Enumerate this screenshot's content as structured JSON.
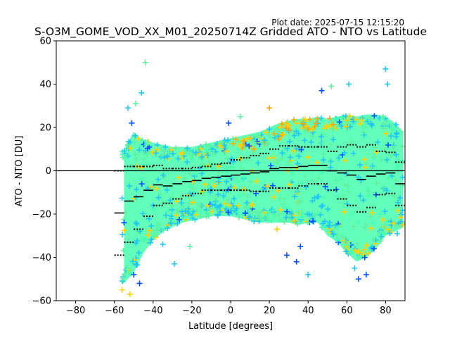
{
  "plot_date": "Plot date: 2025-07-15 12:15:20",
  "chart_data": {
    "type": "scatter",
    "title": "S-O3M_GOME_VOD_XX_M01_20250714Z Gridded ATO - NTO vs Latitude",
    "xlabel": "Latitude [degrees]",
    "ylabel": "ATO - NTO [DU]",
    "xlim": [
      -90,
      90
    ],
    "ylim": [
      -60,
      60
    ],
    "xticks": [
      -80,
      -60,
      -40,
      -20,
      0,
      20,
      40,
      60,
      80
    ],
    "yticks": [
      -60,
      -40,
      -20,
      0,
      20,
      40,
      60
    ],
    "zero_line": 0,
    "grid": false,
    "marker": "plus",
    "colors": {
      "scatter_dense": "#46ffaf",
      "scatter_light": "#5ff0a0",
      "scatter_cyan": "#1ec8f0",
      "scatter_blue": "#0050ff",
      "scatter_yellow": "#ffd000",
      "scatter_orange": "#ffa500",
      "mean_line": "#000000",
      "std_dots": "#000000"
    },
    "bin_means": [
      {
        "x": -57.5,
        "y": -19.5
      },
      {
        "x": -52.5,
        "y": -14
      },
      {
        "x": -47.5,
        "y": -12
      },
      {
        "x": -42.5,
        "y": -9
      },
      {
        "x": -37.5,
        "y": -6.5
      },
      {
        "x": -32.5,
        "y": -7
      },
      {
        "x": -27.5,
        "y": -6
      },
      {
        "x": -22.5,
        "y": -5
      },
      {
        "x": -17.5,
        "y": -4.5
      },
      {
        "x": -12.5,
        "y": -3.5
      },
      {
        "x": -7.5,
        "y": -3
      },
      {
        "x": -2.5,
        "y": -2.5
      },
      {
        "x": 2.5,
        "y": -2
      },
      {
        "x": 7.5,
        "y": -1.5
      },
      {
        "x": 12.5,
        "y": -1
      },
      {
        "x": 17.5,
        "y": -0.5
      },
      {
        "x": 22.5,
        "y": 1
      },
      {
        "x": 27.5,
        "y": 1.5
      },
      {
        "x": 32.5,
        "y": 1.5
      },
      {
        "x": 37.5,
        "y": 2
      },
      {
        "x": 42.5,
        "y": 2.5
      },
      {
        "x": 47.5,
        "y": 2.5
      },
      {
        "x": 52.5,
        "y": 0
      },
      {
        "x": 57.5,
        "y": -1
      },
      {
        "x": 62.5,
        "y": -2
      },
      {
        "x": 67.5,
        "y": -4
      },
      {
        "x": 72.5,
        "y": -2.5
      },
      {
        "x": 77.5,
        "y": -1.5
      },
      {
        "x": 82.5,
        "y": -1
      },
      {
        "x": 87.5,
        "y": -6
      }
    ],
    "bin_std_upper": [
      {
        "x": -57.5,
        "y": 0
      },
      {
        "x": -52.5,
        "y": 2
      },
      {
        "x": -47.5,
        "y": 2
      },
      {
        "x": -42.5,
        "y": 2
      },
      {
        "x": -37.5,
        "y": 2.5
      },
      {
        "x": -32.5,
        "y": 1
      },
      {
        "x": -27.5,
        "y": 1
      },
      {
        "x": -22.5,
        "y": 1
      },
      {
        "x": -17.5,
        "y": 1.5
      },
      {
        "x": -12.5,
        "y": 2
      },
      {
        "x": -7.5,
        "y": 3
      },
      {
        "x": -2.5,
        "y": 3.5
      },
      {
        "x": 2.5,
        "y": 5
      },
      {
        "x": 7.5,
        "y": 6
      },
      {
        "x": 12.5,
        "y": 7
      },
      {
        "x": 17.5,
        "y": 8
      },
      {
        "x": 22.5,
        "y": 10
      },
      {
        "x": 27.5,
        "y": 11.5
      },
      {
        "x": 32.5,
        "y": 11.5
      },
      {
        "x": 37.5,
        "y": 11
      },
      {
        "x": 42.5,
        "y": 11
      },
      {
        "x": 47.5,
        "y": 11
      },
      {
        "x": 52.5,
        "y": 9
      },
      {
        "x": 57.5,
        "y": 11
      },
      {
        "x": 62.5,
        "y": 12
      },
      {
        "x": 67.5,
        "y": 11
      },
      {
        "x": 72.5,
        "y": 12
      },
      {
        "x": 77.5,
        "y": 9
      },
      {
        "x": 82.5,
        "y": 8.5
      },
      {
        "x": 87.5,
        "y": 4
      }
    ],
    "bin_std_lower": [
      {
        "x": -57.5,
        "y": -39
      },
      {
        "x": -52.5,
        "y": -33
      },
      {
        "x": -47.5,
        "y": -27
      },
      {
        "x": -42.5,
        "y": -21
      },
      {
        "x": -37.5,
        "y": -16
      },
      {
        "x": -32.5,
        "y": -15
      },
      {
        "x": -27.5,
        "y": -13
      },
      {
        "x": -22.5,
        "y": -11.5
      },
      {
        "x": -17.5,
        "y": -10.5
      },
      {
        "x": -12.5,
        "y": -9
      },
      {
        "x": -7.5,
        "y": -9
      },
      {
        "x": -2.5,
        "y": -9
      },
      {
        "x": 2.5,
        "y": -9
      },
      {
        "x": 7.5,
        "y": -9
      },
      {
        "x": 12.5,
        "y": -9.5
      },
      {
        "x": 17.5,
        "y": -9.5
      },
      {
        "x": 22.5,
        "y": -8
      },
      {
        "x": 27.5,
        "y": -8
      },
      {
        "x": 32.5,
        "y": -8
      },
      {
        "x": 37.5,
        "y": -7
      },
      {
        "x": 42.5,
        "y": -6
      },
      {
        "x": 47.5,
        "y": -6
      },
      {
        "x": 52.5,
        "y": -9
      },
      {
        "x": 57.5,
        "y": -13
      },
      {
        "x": 62.5,
        "y": -16
      },
      {
        "x": 67.5,
        "y": -19
      },
      {
        "x": 72.5,
        "y": -17
      },
      {
        "x": 77.5,
        "y": -11
      },
      {
        "x": 82.5,
        "y": -10.5
      },
      {
        "x": 87.5,
        "y": -16
      }
    ],
    "envelope_upper": [
      {
        "x": -55,
        "y": 10
      },
      {
        "x": -50,
        "y": 18
      },
      {
        "x": -45,
        "y": 14
      },
      {
        "x": -40,
        "y": 13
      },
      {
        "x": -35,
        "y": 12
      },
      {
        "x": -30,
        "y": 11
      },
      {
        "x": -25,
        "y": 11
      },
      {
        "x": -20,
        "y": 11
      },
      {
        "x": -15,
        "y": 12
      },
      {
        "x": -10,
        "y": 13
      },
      {
        "x": -5,
        "y": 14
      },
      {
        "x": 0,
        "y": 15
      },
      {
        "x": 5,
        "y": 16
      },
      {
        "x": 10,
        "y": 17
      },
      {
        "x": 15,
        "y": 18
      },
      {
        "x": 20,
        "y": 20
      },
      {
        "x": 25,
        "y": 22
      },
      {
        "x": 30,
        "y": 23
      },
      {
        "x": 35,
        "y": 24
      },
      {
        "x": 40,
        "y": 24
      },
      {
        "x": 45,
        "y": 25
      },
      {
        "x": 50,
        "y": 24
      },
      {
        "x": 55,
        "y": 25
      },
      {
        "x": 60,
        "y": 26
      },
      {
        "x": 65,
        "y": 25
      },
      {
        "x": 70,
        "y": 26
      },
      {
        "x": 75,
        "y": 26
      },
      {
        "x": 80,
        "y": 25
      },
      {
        "x": 85,
        "y": 22
      },
      {
        "x": 89,
        "y": 18
      }
    ],
    "envelope_lower": [
      {
        "x": -55,
        "y": -52
      },
      {
        "x": -50,
        "y": -47
      },
      {
        "x": -45,
        "y": -38
      },
      {
        "x": -40,
        "y": -32
      },
      {
        "x": -35,
        "y": -28
      },
      {
        "x": -30,
        "y": -26
      },
      {
        "x": -25,
        "y": -24
      },
      {
        "x": -20,
        "y": -23
      },
      {
        "x": -15,
        "y": -22
      },
      {
        "x": -10,
        "y": -21
      },
      {
        "x": -5,
        "y": -21
      },
      {
        "x": 0,
        "y": -21
      },
      {
        "x": 5,
        "y": -22
      },
      {
        "x": 10,
        "y": -23
      },
      {
        "x": 15,
        "y": -24
      },
      {
        "x": 20,
        "y": -24
      },
      {
        "x": 25,
        "y": -24
      },
      {
        "x": 30,
        "y": -24
      },
      {
        "x": 35,
        "y": -25
      },
      {
        "x": 40,
        "y": -24
      },
      {
        "x": 45,
        "y": -24
      },
      {
        "x": 50,
        "y": -30
      },
      {
        "x": 55,
        "y": -33
      },
      {
        "x": 60,
        "y": -38
      },
      {
        "x": 65,
        "y": -42
      },
      {
        "x": 70,
        "y": -40
      },
      {
        "x": 75,
        "y": -36
      },
      {
        "x": 80,
        "y": -30
      },
      {
        "x": 85,
        "y": -28
      },
      {
        "x": 89,
        "y": -26
      }
    ],
    "outliers": [
      {
        "x": -44,
        "y": 50,
        "c": "scatter_light"
      },
      {
        "x": -46,
        "y": 36,
        "c": "scatter_cyan"
      },
      {
        "x": -49,
        "y": 31,
        "c": "scatter_light"
      },
      {
        "x": -53,
        "y": 29,
        "c": "scatter_cyan"
      },
      {
        "x": -51,
        "y": 22,
        "c": "scatter_blue"
      },
      {
        "x": -55,
        "y": -24,
        "c": "scatter_blue"
      },
      {
        "x": -50,
        "y": -48,
        "c": "scatter_blue"
      },
      {
        "x": -47,
        "y": -52,
        "c": "scatter_blue"
      },
      {
        "x": -52,
        "y": -57,
        "c": "scatter_yellow"
      },
      {
        "x": -56,
        "y": -55,
        "c": "scatter_yellow"
      },
      {
        "x": -35,
        "y": -34,
        "c": "scatter_cyan"
      },
      {
        "x": -29,
        "y": -43,
        "c": "scatter_cyan"
      },
      {
        "x": -21,
        "y": -35,
        "c": "scatter_light"
      },
      {
        "x": -1,
        "y": 22,
        "c": "scatter_blue"
      },
      {
        "x": 5,
        "y": 25,
        "c": "scatter_light"
      },
      {
        "x": 20,
        "y": 29,
        "c": "scatter_orange"
      },
      {
        "x": 24,
        "y": -27,
        "c": "scatter_yellow"
      },
      {
        "x": 29,
        "y": -39,
        "c": "scatter_blue"
      },
      {
        "x": 34,
        "y": -42,
        "c": "scatter_blue"
      },
      {
        "x": 36,
        "y": -35,
        "c": "scatter_blue"
      },
      {
        "x": 40,
        "y": -48,
        "c": "scatter_cyan"
      },
      {
        "x": 47,
        "y": 37,
        "c": "scatter_blue"
      },
      {
        "x": 52,
        "y": 39,
        "c": "scatter_light"
      },
      {
        "x": 61,
        "y": 40,
        "c": "scatter_cyan"
      },
      {
        "x": 64,
        "y": -45,
        "c": "scatter_cyan"
      },
      {
        "x": 66,
        "y": -50,
        "c": "scatter_blue"
      },
      {
        "x": 70,
        "y": -48,
        "c": "scatter_blue"
      },
      {
        "x": 74,
        "y": -36,
        "c": "scatter_blue"
      },
      {
        "x": 80,
        "y": 47,
        "c": "scatter_cyan"
      },
      {
        "x": 81,
        "y": 40,
        "c": "scatter_cyan"
      },
      {
        "x": 86,
        "y": -29,
        "c": "scatter_cyan"
      },
      {
        "x": 89,
        "y": -25,
        "c": "scatter_yellow"
      }
    ]
  }
}
